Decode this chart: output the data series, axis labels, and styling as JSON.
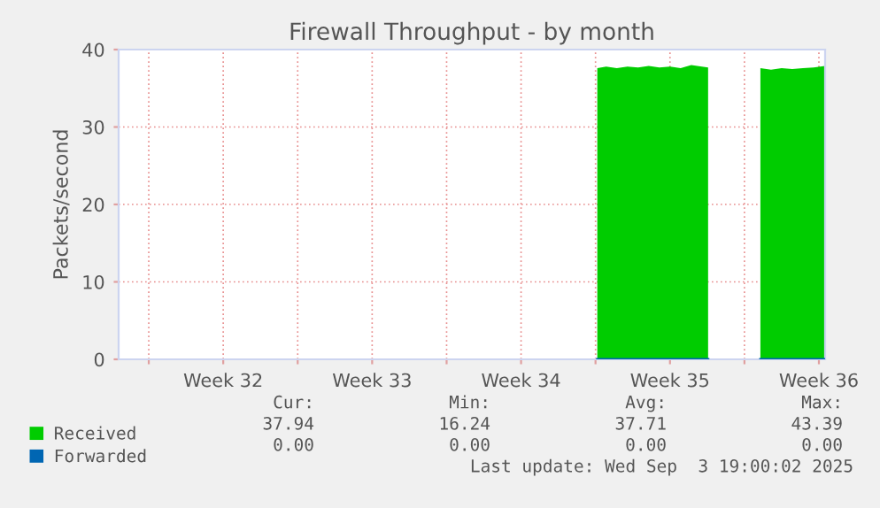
{
  "chart_data": {
    "type": "area",
    "title": "Firewall Throughput - by month",
    "ylabel": "Packets/second",
    "xlim": [
      "2025-08-02T14:00",
      "2025-09-04T19:00"
    ],
    "xticks": [
      {
        "value": "2025-08-04",
        "label": null
      },
      {
        "value": "2025-08-07T12:00",
        "label": "Week 32"
      },
      {
        "value": "2025-08-11",
        "label": null
      },
      {
        "value": "2025-08-14T12:00",
        "label": "Week 33"
      },
      {
        "value": "2025-08-18",
        "label": null
      },
      {
        "value": "2025-08-21T12:00",
        "label": "Week 34"
      },
      {
        "value": "2025-08-25",
        "label": null
      },
      {
        "value": "2025-08-28T12:00",
        "label": "Week 35"
      },
      {
        "value": "2025-09-01",
        "label": null
      },
      {
        "value": "2025-09-04T12:00",
        "label": "Week 36"
      }
    ],
    "ylim": [
      0,
      40
    ],
    "yticks": [
      0,
      10,
      20,
      30,
      40
    ],
    "grid": true,
    "legend": "bottom left",
    "x": [
      "2025-08-25T02:00",
      "2025-08-25T12:00",
      "2025-08-26T00:00",
      "2025-08-26T12:00",
      "2025-08-27T00:00",
      "2025-08-27T12:00",
      "2025-08-28T00:00",
      "2025-08-28T12:00",
      "2025-08-29T00:00",
      "2025-08-29T12:00",
      "2025-08-30T00:00",
      "2025-08-30T07:00",
      "2025-08-30T08:00",
      "2025-09-01T17:00",
      "2025-09-01T18:00",
      "2025-09-02T06:00",
      "2025-09-02T18:00",
      "2025-09-03T06:00",
      "2025-09-03T18:00",
      "2025-09-04T06:00",
      "2025-09-04T19:00"
    ],
    "series": [
      {
        "name": "Received",
        "color": "#00cc00",
        "values": [
          37.6,
          37.8,
          37.6,
          37.8,
          37.7,
          37.9,
          37.7,
          37.8,
          37.6,
          38.0,
          37.8,
          37.7,
          null,
          null,
          37.6,
          37.4,
          37.6,
          37.5,
          37.6,
          37.7,
          37.9
        ]
      },
      {
        "name": "Forwarded",
        "type": "line",
        "color": "#0066b3",
        "values": [
          0,
          0,
          0,
          0,
          0,
          0,
          0,
          0,
          0,
          0,
          0,
          0,
          null,
          null,
          0,
          0,
          0,
          0,
          0,
          0,
          0
        ]
      }
    ],
    "annotations": [
      "Cur:             Min:             Avg:             Max:",
      "37.94            16.24            37.71            43.39",
      "0.00             0.00             0.00             0.00",
      "Last update: Wed Sep  3 19:00:02 2025"
    ]
  }
}
